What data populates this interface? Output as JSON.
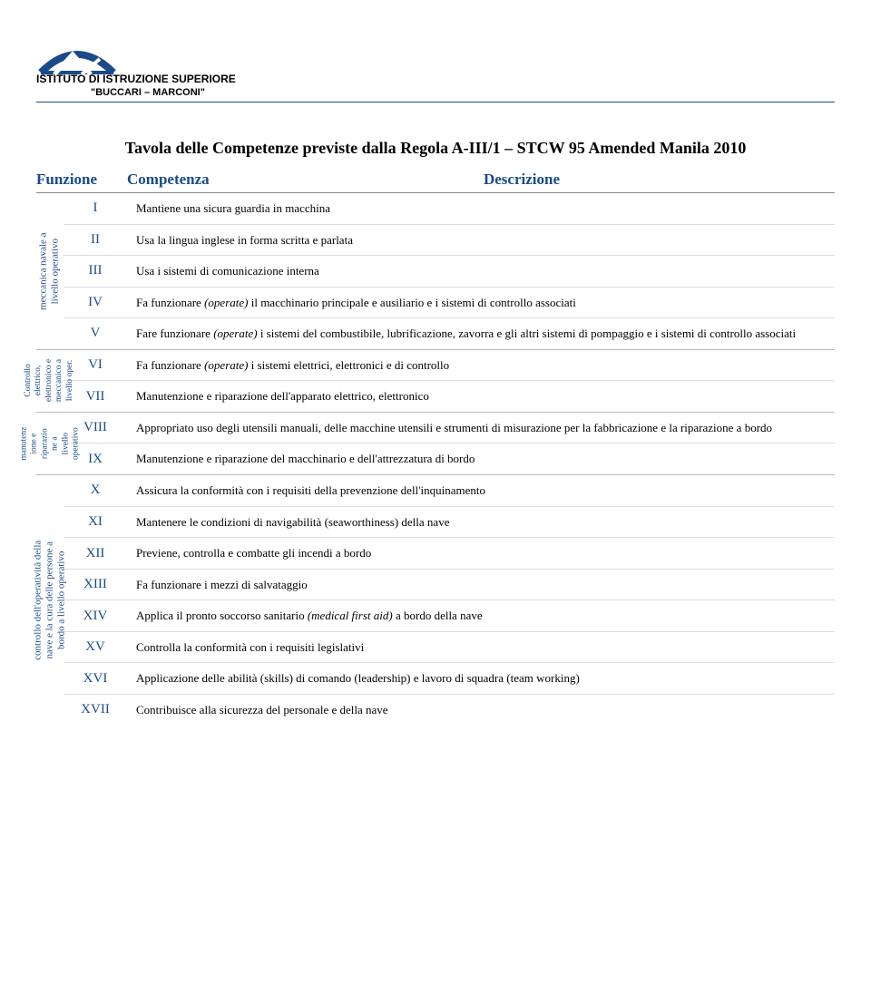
{
  "header": {
    "institute": "ISTITUTO DI ISTRUZIONE SUPERIORE",
    "subtitle": "\"BUCCARI – MARCONI\""
  },
  "title": "Tavola delle Competenze previste dalla Regola A-III/1 – STCW 95 Amended Manila 2010",
  "columns": {
    "function": "Funzione",
    "competence": "Competenza",
    "description": "Descrizione"
  },
  "colors": {
    "heading": "#1a4a8a",
    "rule": "#1a4a8a"
  },
  "groups": [
    {
      "label": "meccanica navale a\nlivello operativo",
      "rows": [
        {
          "num": "I",
          "desc": "Mantiene una sicura guardia in macchina"
        },
        {
          "num": "II",
          "desc": "Usa la lingua inglese in forma scritta e parlata"
        },
        {
          "num": "III",
          "desc": "Usa i sistemi di comunicazione interna"
        },
        {
          "num": "IV",
          "desc": "Fa funzionare (operate) il macchinario principale e ausiliario e i sistemi di controllo associati",
          "italic_terms": [
            "(operate)"
          ]
        },
        {
          "num": "V",
          "desc": "Fare funzionare (operate) i sistemi del combustibile, lubrificazione, zavorra e gli altri sistemi di pompaggio e i sistemi di controllo associati"
        }
      ]
    },
    {
      "label": "Controllo\nelettrico,\nelettronico e\nmeccanico a\nlivello oper.",
      "small": true,
      "rows": [
        {
          "num": "VI",
          "desc": "Fa funzionare (operate) i sistemi elettrici, elettronici e di controllo"
        },
        {
          "num": "VII",
          "desc": "Manutenzione e riparazione dell'apparato elettrico, elettronico"
        }
      ]
    },
    {
      "label": "manutenz\nione e\nriparazio\nne a\nlivello\noperativo",
      "small": true,
      "rows": [
        {
          "num": "VIII",
          "desc": "Appropriato uso degli utensili manuali, delle macchine utensili e strumenti di misurazione per la fabbricazione e la riparazione a bordo"
        },
        {
          "num": "IX",
          "desc": "Manutenzione e riparazione del macchinario e dell'attrezzatura di bordo"
        }
      ]
    },
    {
      "label": "controllo dell'operatività della\nnave e la cura delle persone a\nbordo a livello operativo",
      "rows": [
        {
          "num": "X",
          "desc": "Assicura la conformità con i requisiti della prevenzione dell'inquinamento"
        },
        {
          "num": "XI",
          "desc": "Mantenere le condizioni di navigabilità (seaworthiness) della nave"
        },
        {
          "num": "XII",
          "desc": "Previene, controlla e combatte gli incendi a bordo"
        },
        {
          "num": "XIII",
          "desc": "Fa funzionare  i mezzi di salvataggio"
        },
        {
          "num": "XIV",
          "desc": "Applica il pronto soccorso sanitario (medical first aid) a bordo della nave"
        },
        {
          "num": "XV",
          "desc": "Controlla la conformità con i requisiti legislativi"
        },
        {
          "num": "XVI",
          "desc": "Applicazione delle abilità (skills) di comando (leadership) e lavoro di squadra (team working)"
        },
        {
          "num": "XVII",
          "desc": "Contribuisce alla sicurezza del personale e della nave"
        }
      ]
    }
  ]
}
